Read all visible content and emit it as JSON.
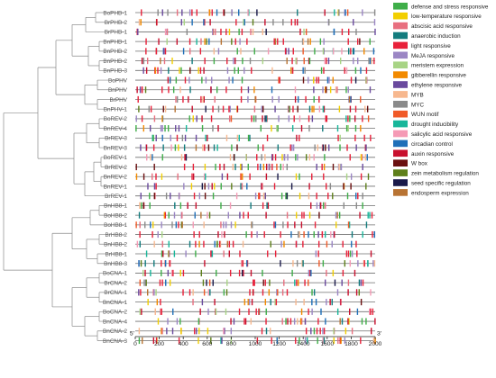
{
  "chart_data": {
    "type": "cis-element-map",
    "genes": [
      "BoPHB-1",
      "BrPHB-2",
      "BrPHB-1",
      "BnPHB-1",
      "BnPHB-2",
      "BnPHB-2",
      "BnPHB-3",
      "BoPHV",
      "BnPHV",
      "BrPHV",
      "BnPHV-1",
      "BoREV-2",
      "BnREV-4",
      "BrREV-3",
      "BnREV-3",
      "BoREV-1",
      "BrREV-2",
      "BnREV-2",
      "BnREV-1",
      "BrREV-1",
      "BnHB8-1",
      "BoHB8-2",
      "BoHB8-1",
      "BrHB8-2",
      "BnHB8-2",
      "BrHB8-1",
      "BnHB8-3",
      "BoCNA-1",
      "BrCNA-2",
      "BrCNA-1",
      "BnCNA-1",
      "BoCNA-2",
      "BnCNA-4",
      "BnCNA-2",
      "BnCNA-3"
    ],
    "xaxis": {
      "min": 0,
      "max": 2000,
      "ticks": [
        0,
        200,
        400,
        600,
        800,
        1000,
        1200,
        1400,
        1600,
        1800,
        2000
      ]
    },
    "axis_end_labels": {
      "left": "5'",
      "right": "3'"
    },
    "legend": [
      {
        "label": "defense and stress responsive",
        "color": "#3fae49"
      },
      {
        "label": "low-temperature responsive",
        "color": "#f2cf00"
      },
      {
        "label": "abscisic acid responsive",
        "color": "#e86f7f"
      },
      {
        "label": "anaerobic induction",
        "color": "#137c7e"
      },
      {
        "label": "light responsive",
        "color": "#e8213a"
      },
      {
        "label": "MeJA responsive",
        "color": "#9b86c4"
      },
      {
        "label": "meristem expression",
        "color": "#a8d485"
      },
      {
        "label": "gibberellin responsive",
        "color": "#f28a00"
      },
      {
        "label": "ethylene responsive",
        "color": "#6a4a9e"
      },
      {
        "label": "MYB",
        "color": "#f7b88f"
      },
      {
        "label": "MYC",
        "color": "#8a8a8a"
      },
      {
        "label": "WUN motif",
        "color": "#f05a28"
      },
      {
        "label": "drought inducibility",
        "color": "#18b69a"
      },
      {
        "label": "salicylic acid responsive",
        "color": "#f59ab5"
      },
      {
        "label": "circadian control",
        "color": "#1f6fb8"
      },
      {
        "label": "auxin responsive",
        "color": "#c8102e"
      },
      {
        "label": "W box",
        "color": "#6b1010"
      },
      {
        "label": "zein metabolism regulation",
        "color": "#5e7f1a"
      },
      {
        "label": "seed specific regulation",
        "color": "#1a1a4a"
      },
      {
        "label": "endosperm expression",
        "color": "#b87333"
      }
    ],
    "element_density_per_gene": 30
  }
}
